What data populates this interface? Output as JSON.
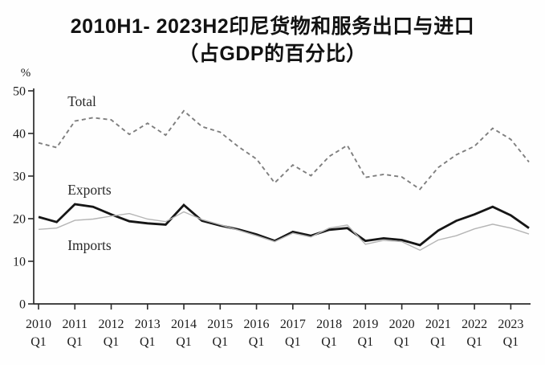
{
  "page": {
    "background": "#fefefe"
  },
  "title": {
    "line1": "2010H1- 2023H2印尼货物和服务出口与进口",
    "line2": "（占GDP的百分比）"
  },
  "chart_data": {
    "type": "line",
    "title": "2010H1- 2023H2印尼货物和服务出口与进口（占GDP的百分比）",
    "unit_label": "%",
    "xlabel": "",
    "ylabel": "%",
    "ylim": [
      0,
      50
    ],
    "yticks": [
      0,
      10,
      20,
      30,
      40,
      50
    ],
    "grid": false,
    "legend_position": "inline-annotations",
    "x_tick_years": [
      "2010",
      "2011",
      "2012",
      "2013",
      "2014",
      "2015",
      "2016",
      "2017",
      "2018",
      "2019",
      "2020",
      "2021",
      "2022",
      "2023"
    ],
    "x_tick_sub": "Q1",
    "categories": [
      "2010H1",
      "2010H2",
      "2011H1",
      "2011H2",
      "2012H1",
      "2012H2",
      "2013H1",
      "2013H2",
      "2014H1",
      "2014H2",
      "2015H1",
      "2015H2",
      "2016H1",
      "2016H2",
      "2017H1",
      "2017H2",
      "2018H1",
      "2018H2",
      "2019H1",
      "2019H2",
      "2020H1",
      "2020H2",
      "2021H1",
      "2021H2",
      "2022H1",
      "2022H2",
      "2023H1",
      "2023H2"
    ],
    "series": [
      {
        "name": "Total",
        "style": "dashed",
        "color": "#7f7f7f",
        "width": 1.9,
        "values": [
          37.8,
          36.7,
          42.9,
          43.7,
          43.2,
          39.8,
          42.4,
          39.6,
          45.3,
          41.6,
          40.3,
          36.9,
          34.0,
          28.4,
          32.6,
          30.1,
          34.6,
          37.2,
          29.7,
          30.4,
          29.8,
          26.9,
          32.0,
          35.0,
          37.0,
          41.2,
          38.6,
          33.3
        ]
      },
      {
        "name": "Exports",
        "style": "solid",
        "color": "#161616",
        "width": 2.8,
        "values": [
          20.4,
          19.2,
          23.4,
          22.8,
          21.0,
          19.4,
          18.9,
          18.6,
          23.2,
          19.5,
          18.4,
          17.5,
          16.3,
          14.8,
          16.9,
          16.0,
          17.4,
          17.8,
          14.8,
          15.4,
          15.0,
          13.8,
          17.2,
          19.5,
          21.0,
          22.8,
          20.8,
          17.8
        ]
      },
      {
        "name": "Imports",
        "style": "solid",
        "color": "#b5b5b5",
        "width": 1.4,
        "values": [
          17.5,
          17.8,
          19.6,
          19.9,
          20.6,
          21.2,
          19.9,
          19.3,
          21.6,
          19.8,
          18.6,
          17.3,
          16.0,
          14.6,
          16.6,
          15.7,
          17.8,
          18.5,
          14.0,
          14.9,
          14.6,
          12.6,
          15.0,
          16.0,
          17.6,
          18.7,
          17.8,
          16.4
        ]
      }
    ],
    "annotations": [
      {
        "text": "Total",
        "x_index": 1.6,
        "y_value": 46.4
      },
      {
        "text": "Exports",
        "x_index": 1.6,
        "y_value": 25.7
      },
      {
        "text": "Imports",
        "x_index": 1.6,
        "y_value": 12.6
      }
    ],
    "axis_color": "#2b2b2b",
    "tick_label_color": "#1d1d1d"
  }
}
